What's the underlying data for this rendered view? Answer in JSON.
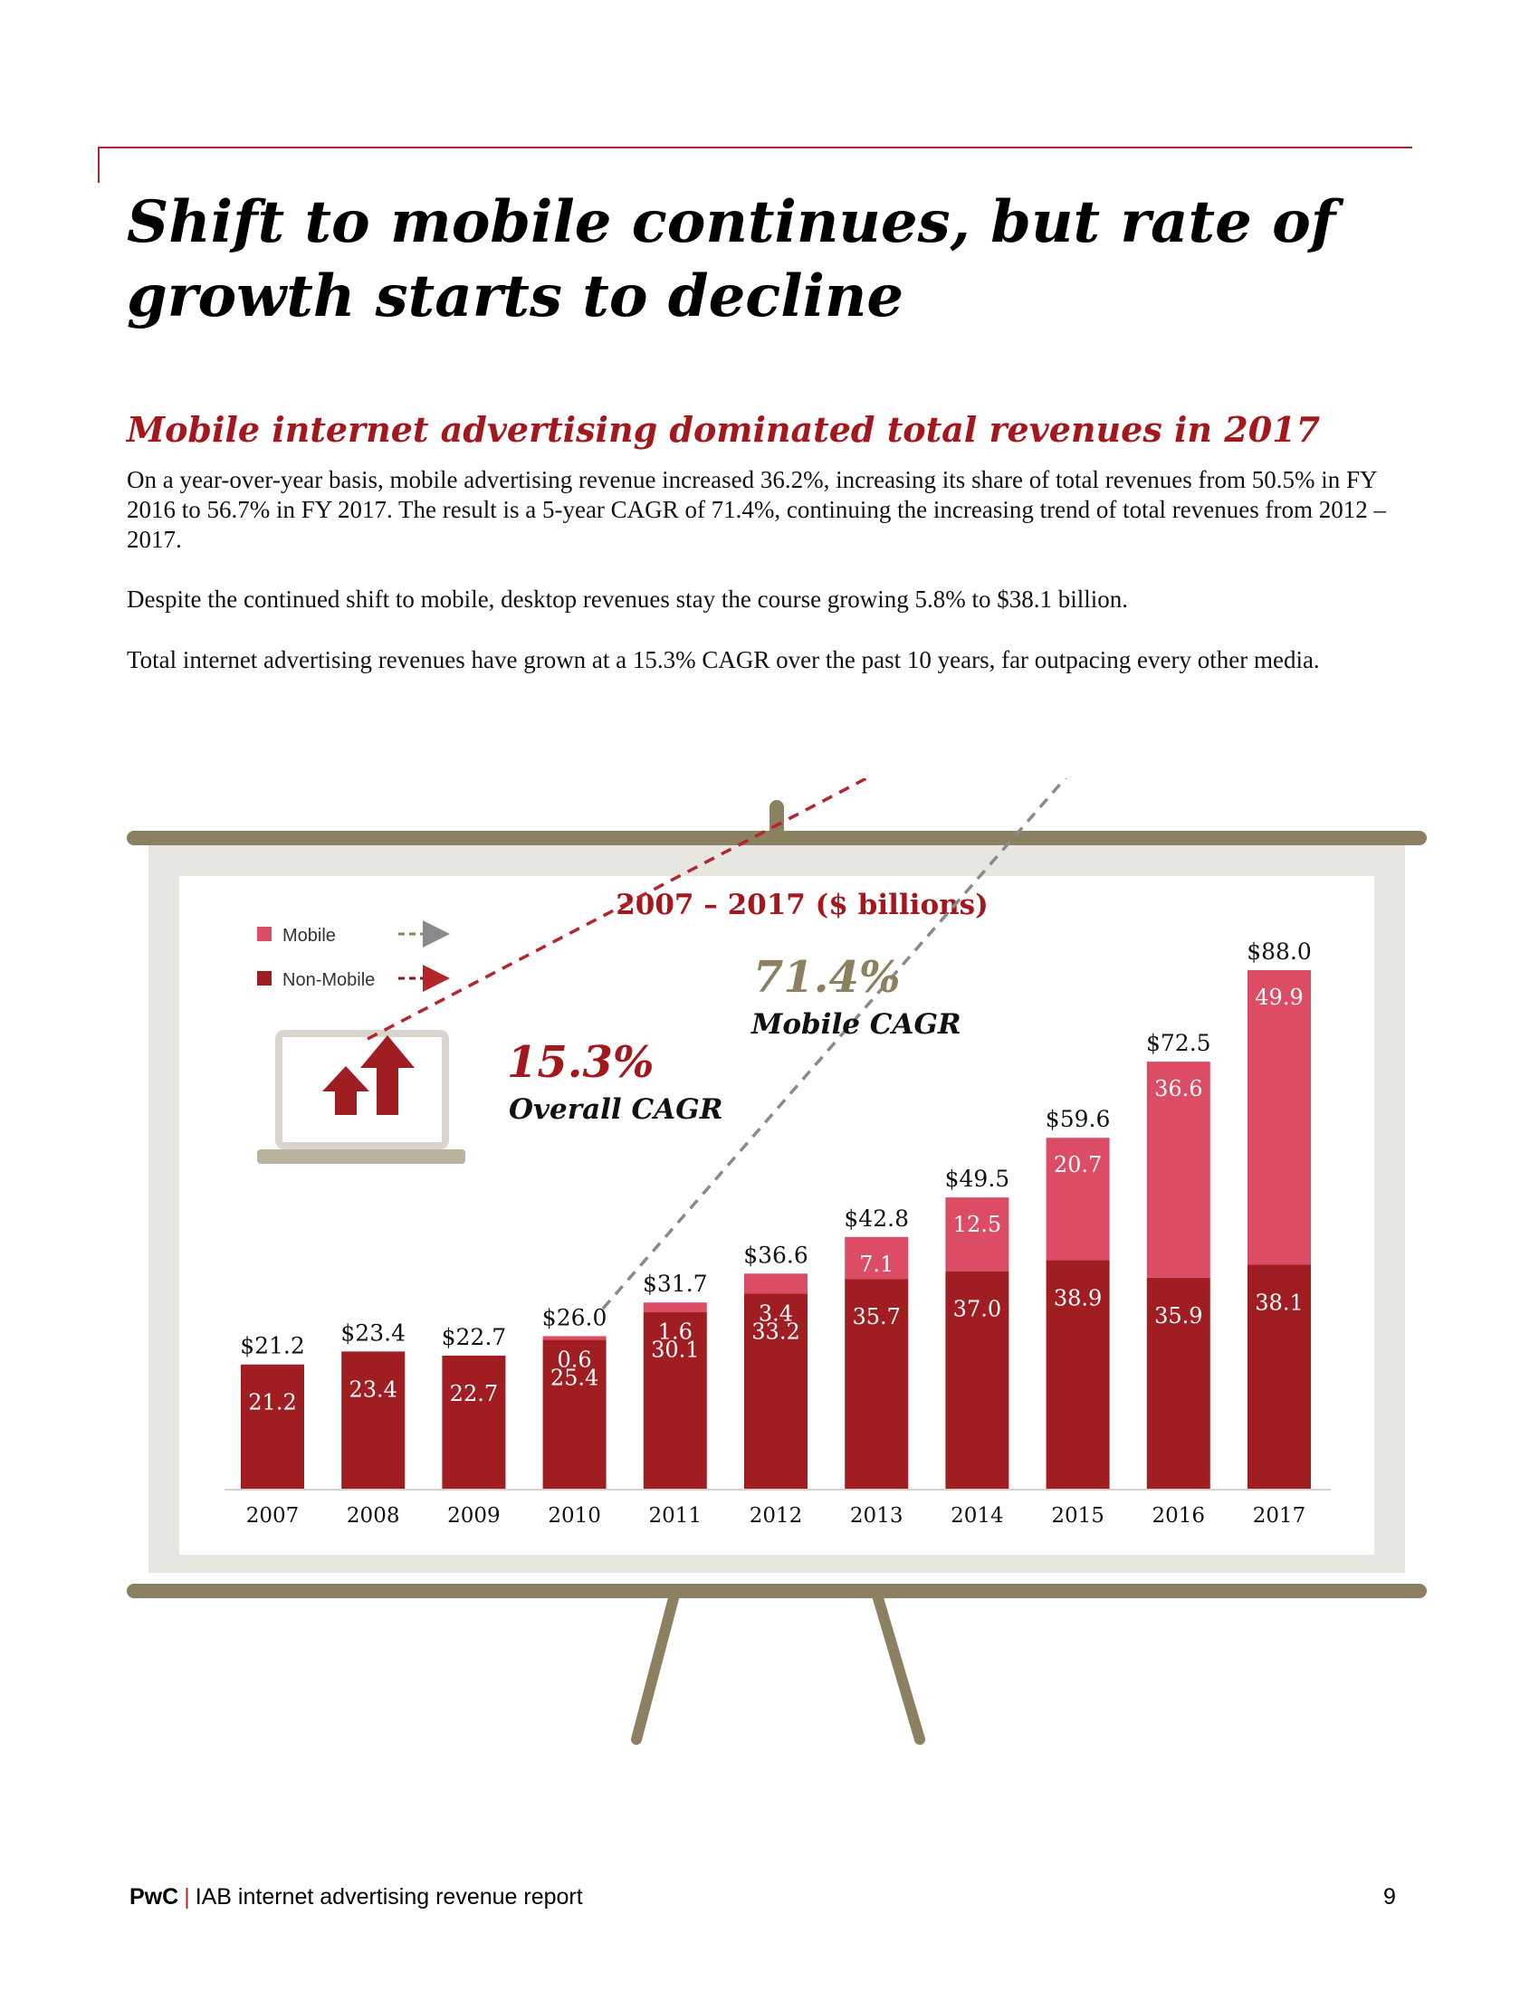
{
  "page": {
    "title": "Shift to mobile continues, but rate of growth starts to decline",
    "subtitle": "Mobile internet advertising dominated total revenues in 2017",
    "paragraphs": [
      "On a year-over-year basis, mobile advertising revenue increased 36.2%, increasing its share of total revenues from 50.5% in FY 2016 to 56.7% in FY 2017. The result is a 5-year CAGR of 71.4%, continuing the increasing trend of total revenues from 2012 – 2017.",
      "Despite the continued shift to mobile, desktop revenues stay the course growing 5.8% to $38.1 billion.",
      "Total internet advertising revenues have grown at a 15.3% CAGR over the past 10 years, far outpacing every other media."
    ]
  },
  "footer": {
    "brand": "PwC",
    "separator": "|",
    "report": "IAB internet advertising revenue report",
    "page_number": "9"
  },
  "chart_data": {
    "type": "bar",
    "stacked": true,
    "title": "2007 – 2017 ($ billions)",
    "categories": [
      "2007",
      "2008",
      "2009",
      "2010",
      "2011",
      "2012",
      "2013",
      "2014",
      "2015",
      "2016",
      "2017"
    ],
    "series": [
      {
        "name": "Non-Mobile",
        "color": "#a01d22",
        "values": [
          21.2,
          23.4,
          22.7,
          25.4,
          30.1,
          33.2,
          35.7,
          37.0,
          38.9,
          35.9,
          38.1
        ],
        "labels": [
          "21.2",
          "23.4",
          "22.7",
          "25.4",
          "30.1",
          "33.2",
          "35.7",
          "37.0",
          "38.9",
          "35.9",
          "38.1"
        ]
      },
      {
        "name": "Mobile",
        "color": "#dc4c64",
        "values": [
          0,
          0,
          0,
          0.6,
          1.6,
          3.4,
          7.1,
          12.5,
          20.7,
          36.6,
          49.9
        ],
        "labels": [
          "",
          "",
          "",
          "0.6",
          "1.6",
          "3.4",
          "7.1",
          "12.5",
          "20.7",
          "36.6",
          "49.9"
        ]
      }
    ],
    "totals": [
      "$21.2",
      "$23.4",
      "$22.7",
      "$26.0",
      "$31.7",
      "$36.6",
      "$42.8",
      "$49.5",
      "$59.6",
      "$72.5",
      "$88.0"
    ],
    "total_values": [
      21.2,
      23.4,
      22.7,
      26.0,
      31.7,
      36.6,
      42.8,
      49.5,
      59.6,
      72.5,
      88.0
    ],
    "ylim": [
      0,
      88
    ],
    "legend": {
      "position": "top-left",
      "items": [
        "Mobile",
        "Non-Mobile"
      ]
    },
    "annotations": {
      "overall": {
        "value": "15.3%",
        "label": "Overall CAGR",
        "color": "#a3171d"
      },
      "mobile": {
        "value": "71.4%",
        "label": "Mobile CAGR",
        "color": "#8b8060"
      }
    },
    "colors": {
      "overall_arrow": "#b3262b",
      "mobile_arrow": "#8a8a8a",
      "easel": "#8b8060",
      "board": "#e8e6e1"
    }
  }
}
